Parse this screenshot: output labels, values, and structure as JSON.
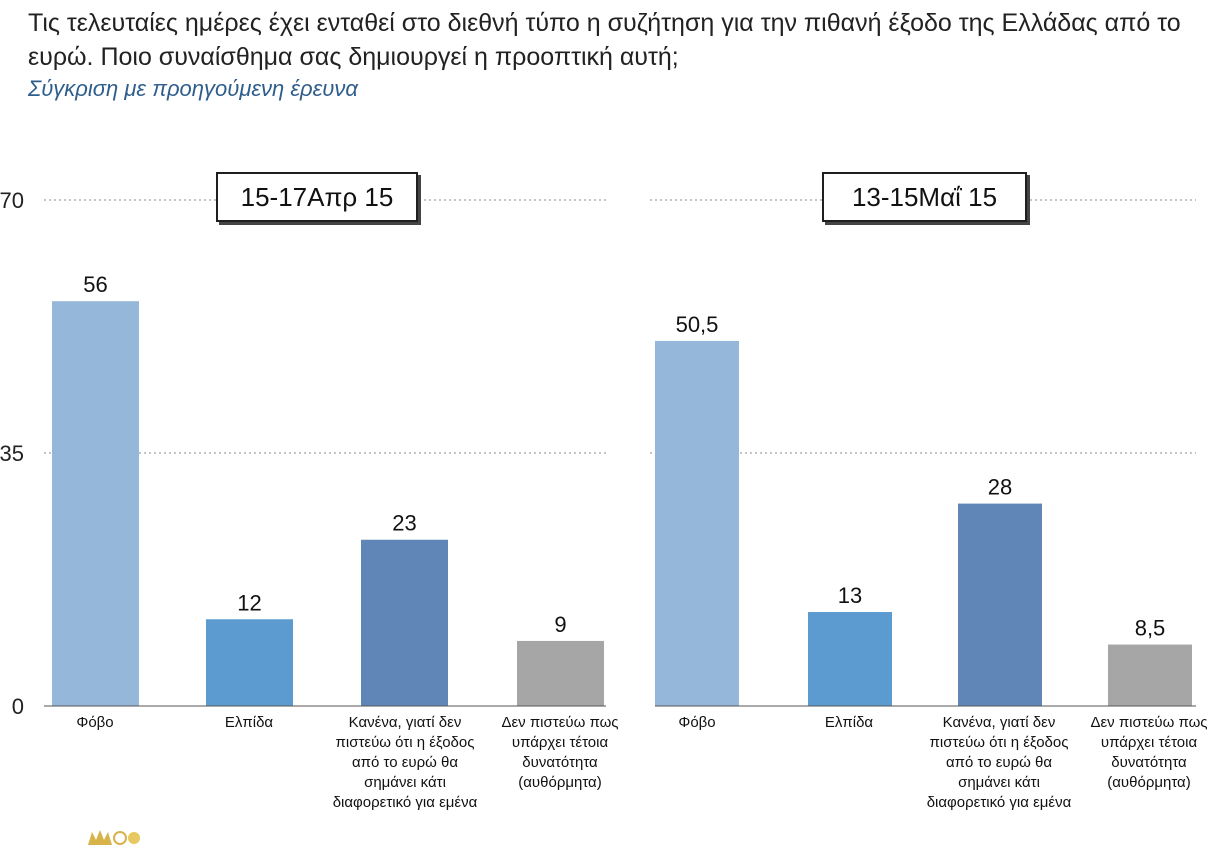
{
  "question": "Τις τελευταίες ημέρες έχει ενταθεί στο διεθνή τύπο η συζήτηση για την πιθανή έξοδο της Ελλάδας από το ευρώ. Ποιο συναίσθημα σας δημιουργεί η προοπτική αυτή;",
  "subtitle": "Σύγκριση με προηγούμενη έρευνα",
  "chart_data": [
    {
      "type": "bar",
      "title": "15-17Απρ 15",
      "categories": [
        "Φόβο",
        "Ελπίδα",
        "Κανένα, γιατί δεν πιστεύω ότι η έξοδος από το ευρώ θα σημάνει κάτι διαφορετικό για εμένα",
        "Δεν πιστεύω πως υπάρχει τέτοια δυνατότητα (αυθόρμητα)"
      ],
      "values": [
        56,
        12,
        23,
        9
      ],
      "value_labels": [
        "56",
        "12",
        "23",
        "9"
      ],
      "colors": [
        "#95b7d9",
        "#5b9bd0",
        "#5f86b6",
        "#a6a6a6"
      ],
      "ylim": [
        0,
        70
      ],
      "yticks": [
        "0",
        "35",
        "70"
      ],
      "grid": true
    },
    {
      "type": "bar",
      "title": "13-15Μαΐ 15",
      "categories": [
        "Φόβο",
        "Ελπίδα",
        "Κανένα, γιατί δεν πιστεύω ότι η έξοδος από το ευρώ θα σημάνει κάτι διαφορετικό για εμένα",
        "Δεν πιστεύω πως υπάρχει τέτοια δυνατότητα (αυθόρμητα)"
      ],
      "values": [
        50.5,
        13,
        28,
        8.5
      ],
      "value_labels": [
        "50,5",
        "13",
        "28",
        "8,5"
      ],
      "colors": [
        "#95b7d9",
        "#5b9bd0",
        "#5f86b6",
        "#a6a6a6"
      ],
      "ylim": [
        0,
        70
      ],
      "grid": true
    }
  ]
}
